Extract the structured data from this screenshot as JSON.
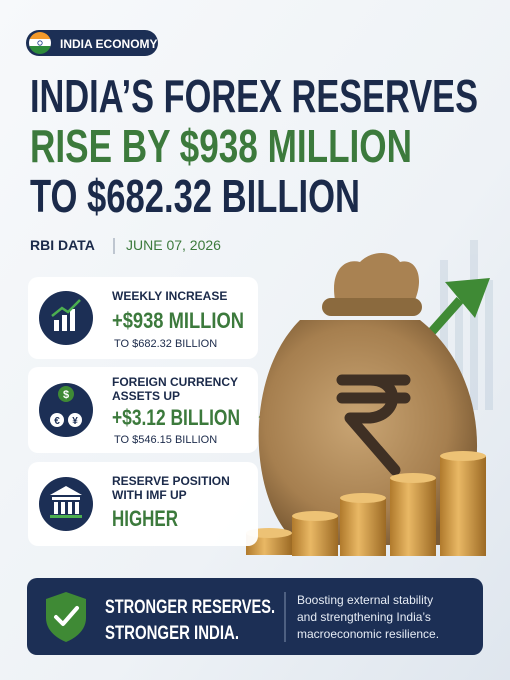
{
  "badge": {
    "text": "INDIA ECONOMY"
  },
  "headline": {
    "lines": [
      "INDIA’S FOREX RESERVES",
      "RISE BY $938 MILLION",
      "TO $682.32 BILLION"
    ]
  },
  "source": {
    "label": "RBI DATA",
    "date": "JUNE 07, 2026"
  },
  "cards": [
    {
      "label_lines": [
        "WEEKLY INCREASE"
      ],
      "value": "+$938 MILLION",
      "detail": "TO $682.32 BILLION"
    },
    {
      "label_lines": [
        "FOREIGN CURRENCY",
        "ASSETS UP"
      ],
      "value": "+$3.12 BILLION",
      "detail": "TO $546.15 BILLION",
      "icon_symbols": [
        "$",
        "€",
        "¥"
      ]
    },
    {
      "label_lines": [
        "RESERVE POSITION",
        "WITH IMF UP"
      ],
      "value": "HIGHER"
    }
  ],
  "footer": {
    "slogan_lines": [
      "STRONGER RESERVES.",
      "STRONGER INDIA."
    ],
    "message_lines": [
      "Boosting external stability",
      "and strengthening India’s",
      "macroeconomic resilience."
    ]
  }
}
